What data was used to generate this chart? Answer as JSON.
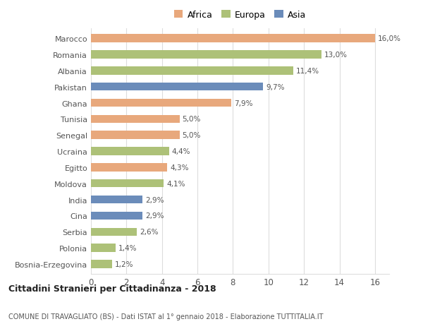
{
  "categories": [
    "Bosnia-Erzegovina",
    "Polonia",
    "Serbia",
    "Cina",
    "India",
    "Moldova",
    "Egitto",
    "Ucraina",
    "Senegal",
    "Tunisia",
    "Ghana",
    "Pakistan",
    "Albania",
    "Romania",
    "Marocco"
  ],
  "values": [
    1.2,
    1.4,
    2.6,
    2.9,
    2.9,
    4.1,
    4.3,
    4.4,
    5.0,
    5.0,
    7.9,
    9.7,
    11.4,
    13.0,
    16.0
  ],
  "colors": [
    "#adc178",
    "#adc178",
    "#adc178",
    "#6b8cba",
    "#6b8cba",
    "#adc178",
    "#e8a87c",
    "#adc178",
    "#e8a87c",
    "#e8a87c",
    "#e8a87c",
    "#6b8cba",
    "#adc178",
    "#adc178",
    "#e8a87c"
  ],
  "legend": [
    {
      "label": "Africa",
      "color": "#e8a87c"
    },
    {
      "label": "Europa",
      "color": "#adc178"
    },
    {
      "label": "Asia",
      "color": "#6b8cba"
    }
  ],
  "xlim": [
    0,
    16.8
  ],
  "xticks": [
    0,
    2,
    4,
    6,
    8,
    10,
    12,
    14,
    16
  ],
  "title": "Cittadini Stranieri per Cittadinanza - 2018",
  "subtitle": "COMUNE DI TRAVAGLIATO (BS) - Dati ISTAT al 1° gennaio 2018 - Elaborazione TUTTITALIA.IT",
  "bg_color": "#ffffff",
  "grid_color": "#dddddd",
  "label_color": "#555555",
  "bar_height": 0.5
}
